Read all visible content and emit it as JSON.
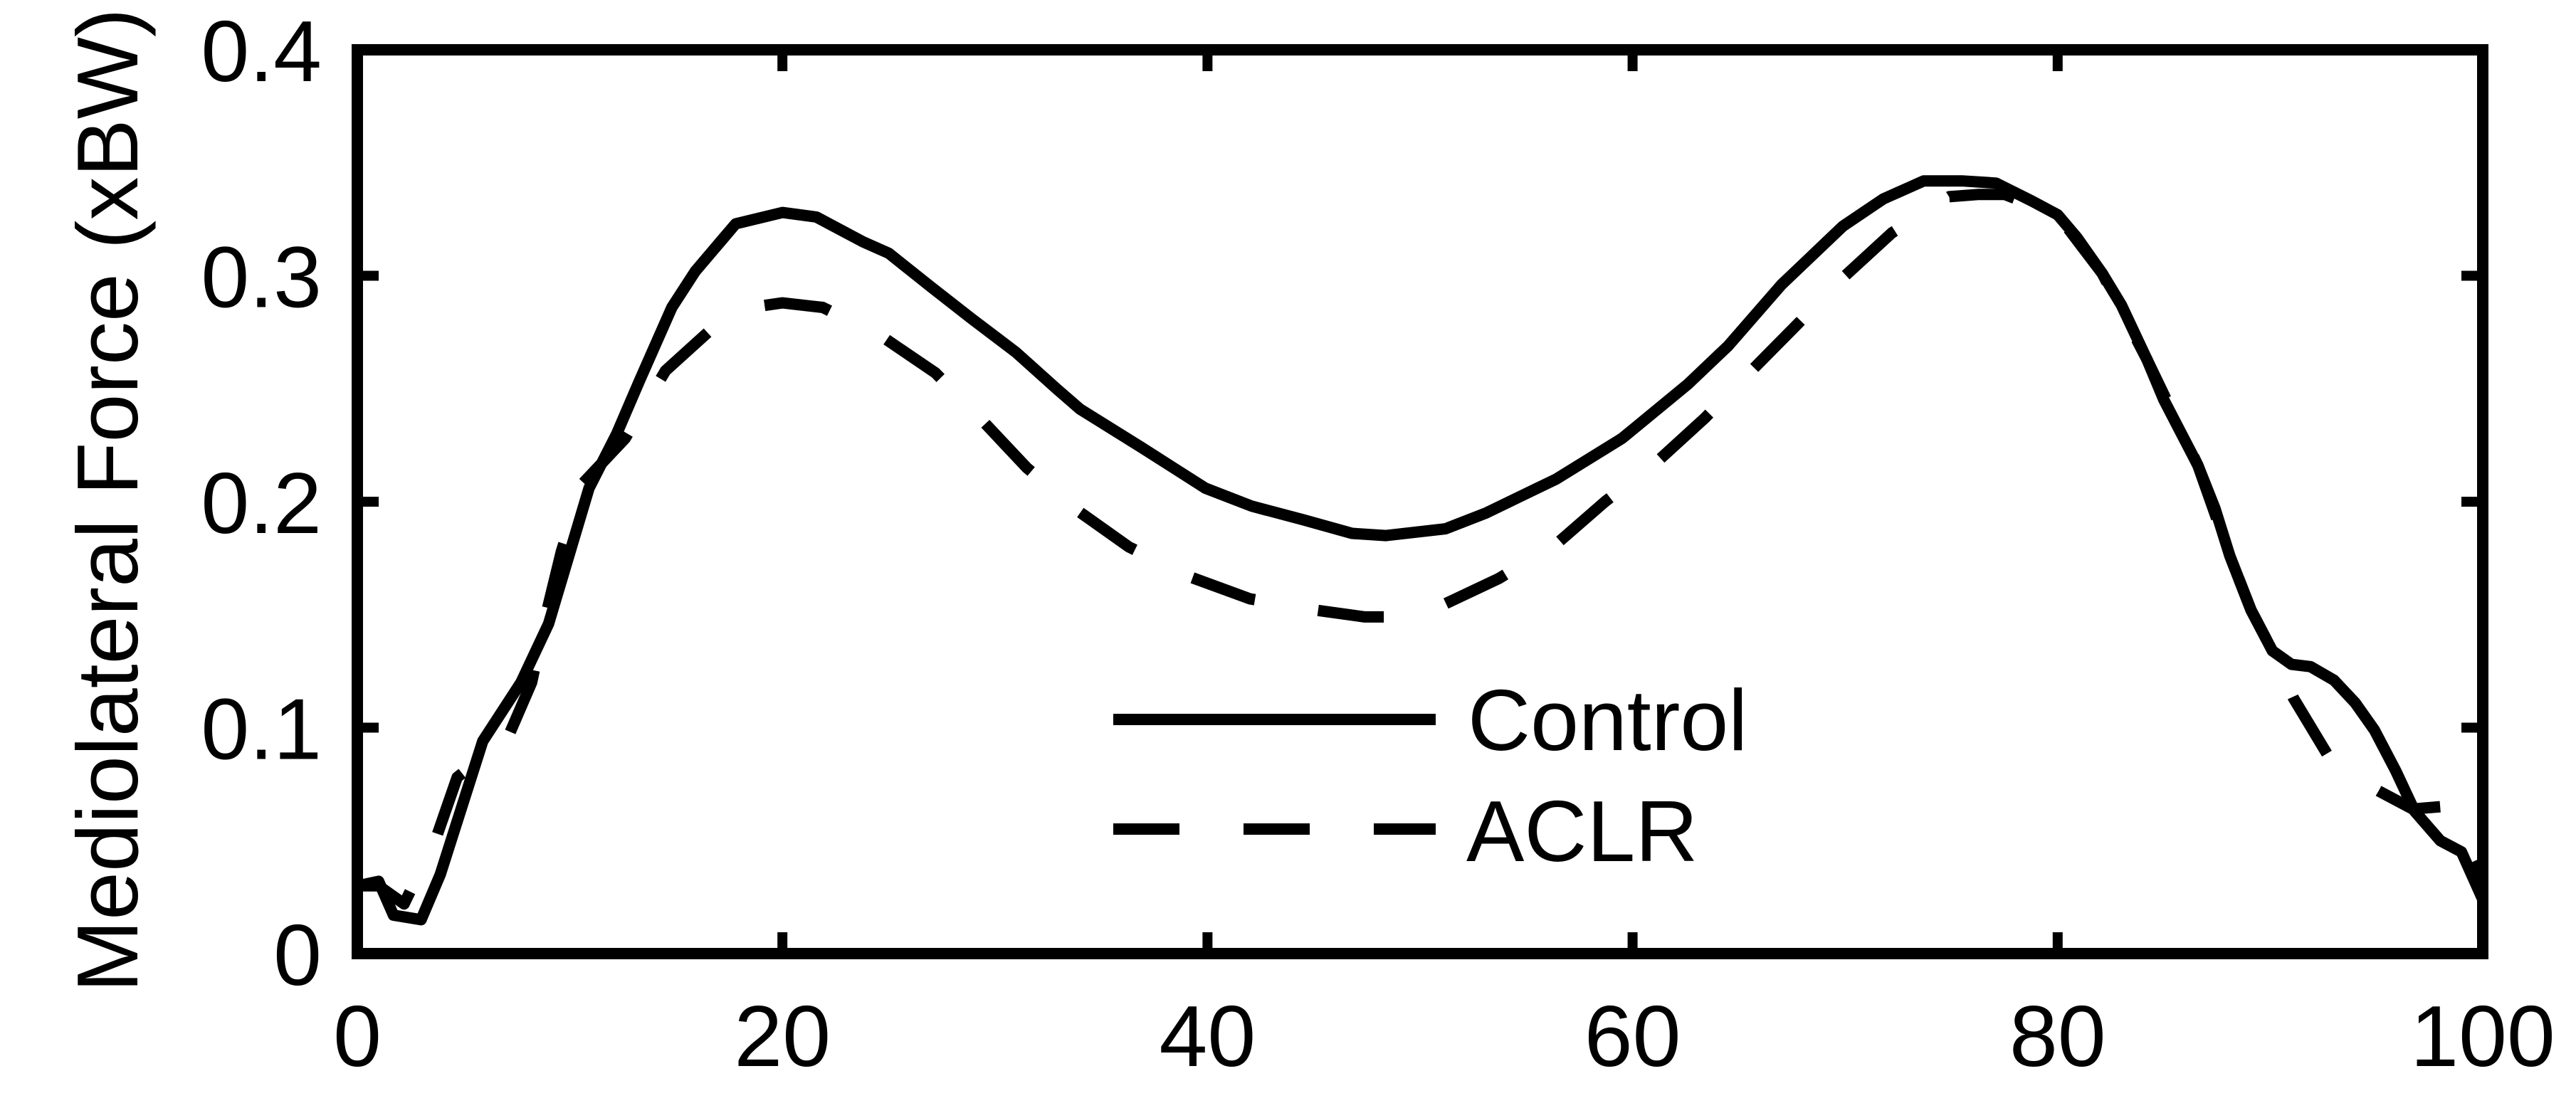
{
  "chart_data": {
    "type": "line",
    "title": "",
    "xlabel": "",
    "ylabel": "Mediolateral Force (xBW)",
    "xlim": [
      0,
      100
    ],
    "ylim": [
      0,
      0.4
    ],
    "grid": false,
    "box": true,
    "legend_position": "inside-center-bottom",
    "x_ticks": [
      0,
      20,
      40,
      60,
      80,
      100
    ],
    "x_tick_labels": [
      "0",
      "20",
      "40",
      "60",
      "80",
      "100"
    ],
    "y_ticks": [
      0,
      0.1,
      0.2,
      0.3,
      0.4
    ],
    "y_tick_labels": [
      "0",
      "0.1",
      "0.2",
      "0.3",
      "0.4"
    ],
    "series": [
      {
        "name": "Control",
        "style": "solid",
        "color": "#000000",
        "x": [
          0,
          1,
          1.7,
          3,
          3.9,
          5.9,
          7.7,
          9,
          10.9,
          12.2,
          13.3,
          14.8,
          15.9,
          17.8,
          20,
          21.6,
          23.8,
          25,
          27,
          28.9,
          31,
          32.9,
          34,
          36.9,
          39.9,
          42.1,
          44.5,
          46.8,
          48.4,
          51.2,
          53.1,
          56.4,
          59.5,
          62.6,
          64.5,
          67,
          69.9,
          71.8,
          73.7,
          75.5,
          77.1,
          78.8,
          80,
          80.9,
          82.1,
          83,
          84.2,
          85,
          86.6,
          87.4,
          88.1,
          89.1,
          90.1,
          91,
          91.9,
          93,
          94,
          94.9,
          95.9,
          96.8,
          98,
          99,
          100
        ],
        "y": [
          0.03,
          0.032,
          0.017,
          0.015,
          0.035,
          0.094,
          0.12,
          0.146,
          0.206,
          0.23,
          0.254,
          0.286,
          0.302,
          0.323,
          0.328,
          0.326,
          0.315,
          0.31,
          0.295,
          0.281,
          0.266,
          0.25,
          0.241,
          0.224,
          0.206,
          0.198,
          0.192,
          0.186,
          0.185,
          0.188,
          0.195,
          0.21,
          0.228,
          0.252,
          0.269,
          0.296,
          0.322,
          0.334,
          0.342,
          0.342,
          0.341,
          0.333,
          0.327,
          0.317,
          0.301,
          0.287,
          0.263,
          0.245,
          0.216,
          0.197,
          0.176,
          0.152,
          0.134,
          0.128,
          0.127,
          0.121,
          0.111,
          0.099,
          0.081,
          0.063,
          0.05,
          0.045,
          0.024
        ]
      },
      {
        "name": "ACLR",
        "style": "dashed",
        "color": "#000000",
        "x": [
          0,
          1,
          2.2,
          3.7,
          4.7,
          7.1,
          8.2,
          8.9,
          9.6,
          10.6,
          12.6,
          14.5,
          16.5,
          18.5,
          20,
          21.9,
          24.7,
          27.2,
          29.4,
          31.5,
          33.9,
          36.3,
          39.1,
          42,
          45.1,
          47.4,
          49,
          51,
          53.7,
          56.5,
          58.7,
          61.3,
          63.4,
          65.7,
          67.8,
          70,
          72.2,
          74.9,
          76.3,
          77.5,
          80,
          82.1,
          84.2,
          86.6,
          88.1,
          89.1,
          90.1,
          91.1,
          92.7,
          94,
          95.1,
          96.7,
          98,
          99,
          100
        ],
        "y": [
          0.03,
          0.03,
          0.022,
          0.051,
          0.078,
          0.096,
          0.12,
          0.151,
          0.178,
          0.208,
          0.228,
          0.258,
          0.275,
          0.286,
          0.288,
          0.286,
          0.273,
          0.257,
          0.236,
          0.215,
          0.196,
          0.18,
          0.167,
          0.157,
          0.152,
          0.149,
          0.149,
          0.154,
          0.166,
          0.182,
          0.2,
          0.219,
          0.237,
          0.259,
          0.279,
          0.3,
          0.319,
          0.335,
          0.336,
          0.336,
          0.327,
          0.301,
          0.263,
          0.216,
          0.176,
          0.152,
          0.134,
          0.113,
          0.088,
          0.078,
          0.072,
          0.064,
          0.065,
          0.05,
          0.03
        ]
      }
    ]
  },
  "axes": {
    "ylabel": "Mediolateral Force (xBW)",
    "x_tick_labels": [
      "0",
      "20",
      "40",
      "60",
      "80",
      "100"
    ],
    "y_tick_labels": [
      "0",
      "0.1",
      "0.2",
      "0.3",
      "0.4"
    ]
  },
  "legend": {
    "items": [
      {
        "label": "Control",
        "style": "solid"
      },
      {
        "label": "ACLR",
        "style": "dashed"
      }
    ]
  },
  "colors": {
    "line": "#000000",
    "axis": "#000000",
    "background": "#ffffff"
  }
}
